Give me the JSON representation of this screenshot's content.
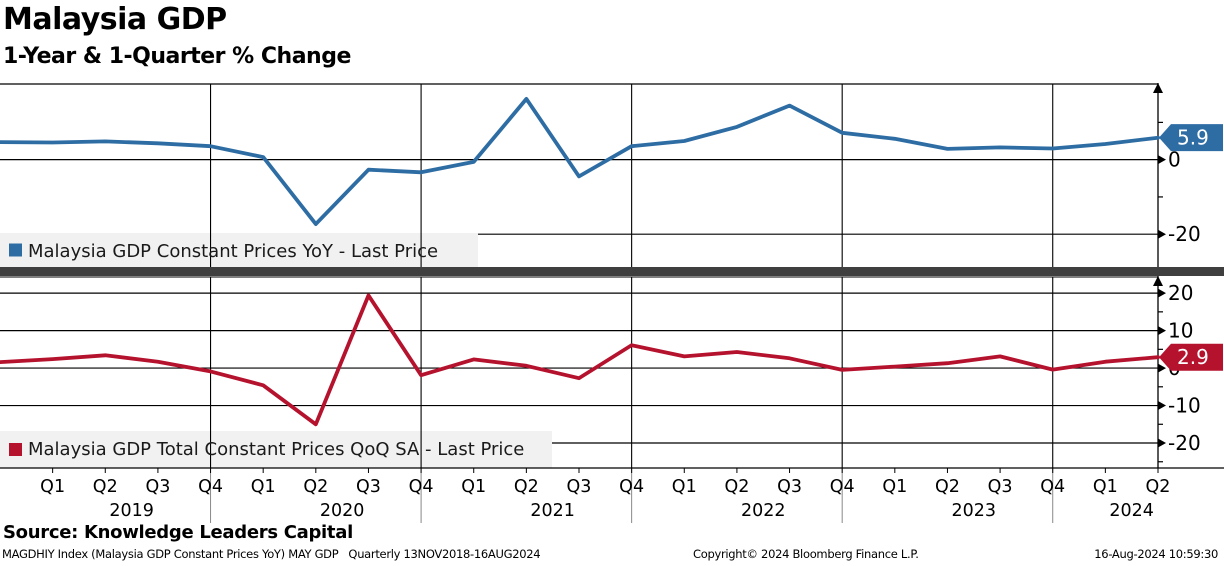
{
  "header": {
    "title": "Malaysia GDP",
    "subtitle": "1-Year & 1-Quarter % Change"
  },
  "footer": {
    "source": "Source: Knowledge Leaders Capital",
    "meta": "MAGDHIY Index (Malaysia GDP Constant Prices YoY) MAY GDP   Quarterly 13NOV2018-16AUG2024",
    "copyright": "Copyright© 2024 Bloomberg Finance L.P.",
    "timestamp": "16-Aug-2024 10:59:30"
  },
  "colors": {
    "yoy_blue": "#2E6DA4",
    "qoq_red": "#B5122E",
    "legend_bg": "#F1F1F1",
    "separator": "#3F3F3F",
    "grid": "#000000",
    "year_divider_gray": "#888888"
  },
  "chart_data": {
    "type": "line",
    "periods": [
      "Q4 2018",
      "Q1 2019",
      "Q2 2019",
      "Q3 2019",
      "Q4 2019",
      "Q1 2020",
      "Q2 2020",
      "Q3 2020",
      "Q4 2020",
      "Q1 2021",
      "Q2 2021",
      "Q3 2021",
      "Q4 2021",
      "Q1 2022",
      "Q2 2022",
      "Q3 2022",
      "Q4 2022",
      "Q1 2023",
      "Q2 2023",
      "Q3 2023",
      "Q4 2023",
      "Q1 2024",
      "Q2 2024"
    ],
    "quarter_tick_labels": [
      "Q1",
      "Q2",
      "Q3",
      "Q4",
      "Q1",
      "Q2",
      "Q3",
      "Q4",
      "Q1",
      "Q2",
      "Q3",
      "Q4",
      "Q1",
      "Q2",
      "Q3",
      "Q4",
      "Q1",
      "Q2",
      "Q3",
      "Q4",
      "Q1",
      "Q2"
    ],
    "years": [
      {
        "label": "2019",
        "quarters": 4
      },
      {
        "label": "2020",
        "quarters": 4
      },
      {
        "label": "2021",
        "quarters": 4
      },
      {
        "label": "2022",
        "quarters": 4
      },
      {
        "label": "2023",
        "quarters": 4
      },
      {
        "label": "2024",
        "quarters": 2
      }
    ],
    "panels": [
      {
        "name": "Malaysia GDP Constant Prices YoY - Last Price",
        "color": "#2E6DA4",
        "values": [
          4.7,
          4.6,
          4.9,
          4.4,
          3.6,
          0.7,
          -17.3,
          -2.7,
          -3.4,
          -0.6,
          16.3,
          -4.5,
          3.6,
          5.0,
          8.8,
          14.5,
          7.2,
          5.6,
          2.9,
          3.3,
          3.0,
          4.2,
          5.9
        ],
        "last_price": "5.9",
        "ylim": [
          -28.8,
          20.3
        ],
        "yticks_labeled": [
          0,
          -20
        ],
        "yticks_minor": [
          10,
          -10
        ],
        "gridlines": [
          0,
          -20
        ]
      },
      {
        "name": "Malaysia GDP Total Constant Prices QoQ SA - Last Price",
        "color": "#B5122E",
        "values": [
          1.6,
          2.4,
          3.4,
          1.7,
          -0.9,
          -4.6,
          -15.0,
          19.4,
          -1.9,
          2.3,
          0.6,
          -2.7,
          6.1,
          3.1,
          4.3,
          2.6,
          -0.5,
          0.4,
          1.3,
          3.1,
          -0.4,
          1.7,
          2.9
        ],
        "last_price": "2.9",
        "ylim": [
          -26.4,
          24.3
        ],
        "yticks_labeled": [
          20,
          10,
          0,
          -10,
          -20
        ],
        "yticks_minor": [
          15,
          5,
          -5,
          -15,
          -25
        ],
        "gridlines": [
          20,
          10,
          0,
          -10,
          -20
        ]
      }
    ],
    "legend_position": "bottom-left-of-each-panel",
    "grid": true
  }
}
